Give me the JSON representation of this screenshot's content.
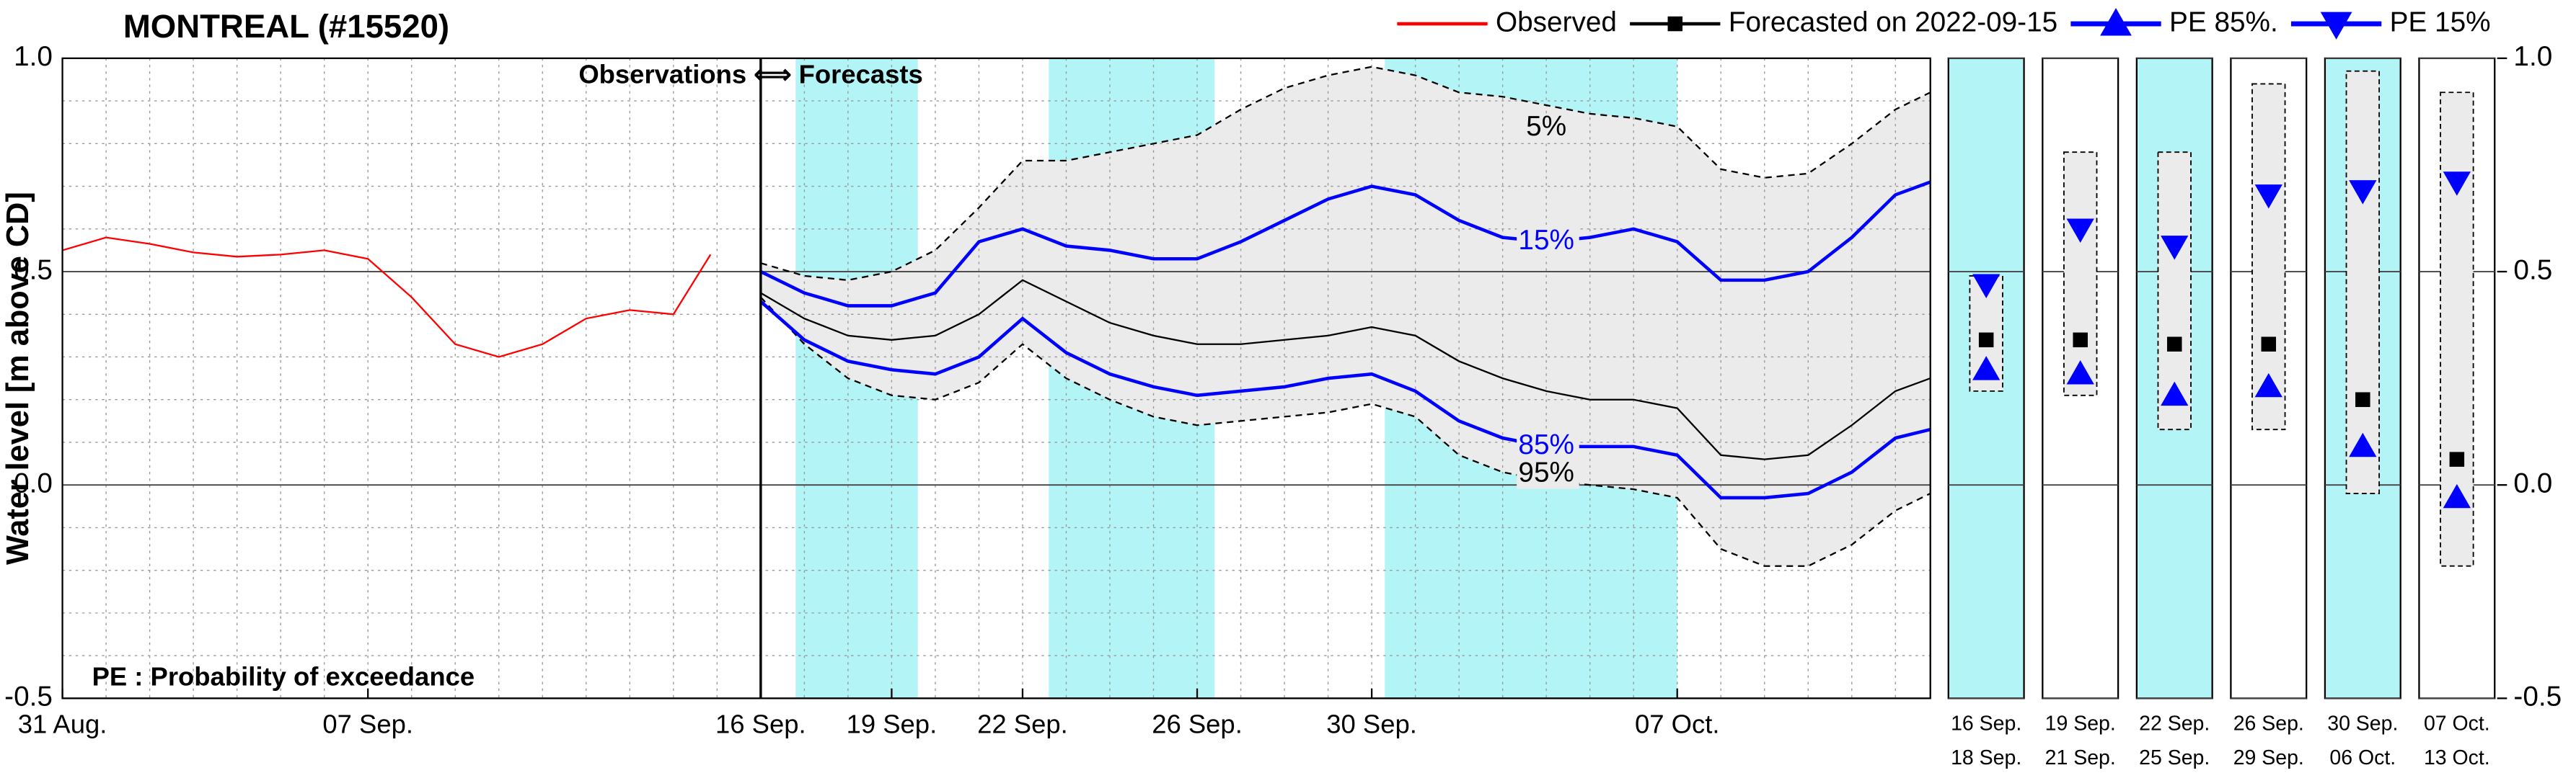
{
  "chart_data": {
    "type": "line",
    "title": "MONTREAL (#15520)",
    "ylabel": "Water level [m above CD]",
    "annotations": [
      "Observations ⟺ Forecasts",
      "PE : Probability of exceedance"
    ],
    "legend": "top-right",
    "xlim": [
      0,
      42.8
    ],
    "xticks": [
      {
        "value": 0,
        "label": "31 Aug."
      },
      {
        "value": 7,
        "label": "07 Sep."
      },
      {
        "value": 16,
        "label": "16 Sep."
      },
      {
        "value": 19,
        "label": "19 Sep."
      },
      {
        "value": 22,
        "label": "22 Sep."
      },
      {
        "value": 26,
        "label": "26 Sep."
      },
      {
        "value": 30,
        "label": "30 Sep."
      },
      {
        "value": 37,
        "label": "07 Oct."
      }
    ],
    "ylim": [
      -0.5,
      1.0
    ],
    "yticks": [
      {
        "value": -0.5,
        "label": "-0.5"
      },
      {
        "value": 0,
        "label": "0.0"
      },
      {
        "value": 0.5,
        "label": "0.5"
      },
      {
        "value": 1,
        "label": "1.0"
      }
    ],
    "minor_grid": {
      "x_step": 1,
      "y_step": 0.1
    },
    "forecast_start": 16,
    "shaded_ranges": [
      [
        16.8,
        19.6
      ],
      [
        22.6,
        26.4
      ],
      [
        30.3,
        37
      ]
    ],
    "shade_color": "#b3f5f7",
    "forecast_x": [
      16,
      17,
      18,
      19,
      20,
      21,
      22,
      23,
      24,
      25,
      26,
      27,
      28,
      29,
      30,
      31,
      32,
      33,
      34,
      35,
      36,
      37,
      38,
      39,
      40,
      41,
      42,
      42.8
    ],
    "series": [
      {
        "name": "Observed",
        "color": "#ff0000",
        "width": 1,
        "marker": "none",
        "x": [
          0,
          1,
          2,
          3,
          4,
          5,
          6,
          7,
          8,
          9,
          10,
          11,
          12,
          13,
          14,
          14.85
        ],
        "values": [
          0.55,
          0.58,
          0.565,
          0.545,
          0.535,
          0.54,
          0.55,
          0.53,
          0.44,
          0.33,
          0.3,
          0.33,
          0.39,
          0.41,
          0.4,
          0.54
        ]
      },
      {
        "name": "Forecasted on 2022-09-15",
        "color": "#000000",
        "width": 1,
        "marker": "square",
        "values": [
          0.45,
          0.39,
          0.35,
          0.34,
          0.35,
          0.4,
          0.48,
          0.43,
          0.38,
          0.35,
          0.33,
          0.33,
          0.34,
          0.35,
          0.37,
          0.35,
          0.29,
          0.25,
          0.22,
          0.2,
          0.2,
          0.18,
          0.07,
          0.06,
          0.07,
          0.14,
          0.22,
          0.25
        ]
      },
      {
        "name": "PE 85%.",
        "color": "#0000ff",
        "width": 2,
        "marker": "triangle-up",
        "curve_label": "85%",
        "values": [
          0.43,
          0.34,
          0.29,
          0.27,
          0.26,
          0.3,
          0.39,
          0.31,
          0.26,
          0.23,
          0.21,
          0.22,
          0.23,
          0.25,
          0.26,
          0.22,
          0.15,
          0.11,
          0.09,
          0.09,
          0.09,
          0.07,
          -0.03,
          -0.03,
          -0.02,
          0.03,
          0.11,
          0.13
        ]
      },
      {
        "name": "PE 15%",
        "color": "#0000ff",
        "width": 2,
        "marker": "triangle-down",
        "curve_label": "15%",
        "values": [
          0.5,
          0.45,
          0.42,
          0.42,
          0.45,
          0.57,
          0.6,
          0.56,
          0.55,
          0.53,
          0.53,
          0.57,
          0.62,
          0.67,
          0.7,
          0.68,
          0.62,
          0.58,
          0.57,
          0.58,
          0.6,
          0.57,
          0.48,
          0.48,
          0.5,
          0.58,
          0.68,
          0.71
        ]
      }
    ],
    "envelope": {
      "color": "#000000",
      "fill": "#ebebeb",
      "upper": {
        "label": "5%",
        "values": [
          0.52,
          0.49,
          0.48,
          0.5,
          0.55,
          0.65,
          0.76,
          0.76,
          0.78,
          0.8,
          0.82,
          0.88,
          0.93,
          0.96,
          0.98,
          0.96,
          0.92,
          0.91,
          0.89,
          0.87,
          0.86,
          0.84,
          0.74,
          0.72,
          0.73,
          0.8,
          0.88,
          0.92
        ]
      },
      "lower": {
        "label": "95%",
        "values": [
          0.44,
          0.33,
          0.25,
          0.21,
          0.2,
          0.24,
          0.33,
          0.25,
          0.2,
          0.16,
          0.14,
          0.15,
          0.16,
          0.17,
          0.19,
          0.16,
          0.07,
          0.03,
          0.01,
          0.0,
          -0.01,
          -0.03,
          -0.15,
          -0.19,
          -0.19,
          -0.14,
          -0.06,
          -0.02
        ]
      }
    },
    "panels": [
      {
        "label": [
          "16 Sep.",
          "18 Sep."
        ],
        "shaded": true,
        "low": 0.22,
        "high": 0.49,
        "median": 0.34,
        "pe85": 0.27,
        "pe15": 0.47
      },
      {
        "label": [
          "19 Sep.",
          "21 Sep."
        ],
        "shaded": false,
        "low": 0.21,
        "high": 0.78,
        "median": 0.34,
        "pe85": 0.26,
        "pe15": 0.6
      },
      {
        "label": [
          "22 Sep.",
          "25 Sep."
        ],
        "shaded": true,
        "low": 0.13,
        "high": 0.78,
        "median": 0.33,
        "pe85": 0.21,
        "pe15": 0.56
      },
      {
        "label": [
          "26 Sep.",
          "29 Sep."
        ],
        "shaded": false,
        "low": 0.13,
        "high": 0.94,
        "median": 0.33,
        "pe85": 0.23,
        "pe15": 0.68
      },
      {
        "label": [
          "30 Sep.",
          "06 Oct."
        ],
        "shaded": true,
        "low": -0.02,
        "high": 0.97,
        "median": 0.2,
        "pe85": 0.09,
        "pe15": 0.69
      },
      {
        "label": [
          "07 Oct.",
          "13 Oct."
        ],
        "shaded": false,
        "low": -0.19,
        "high": 0.92,
        "median": 0.06,
        "pe85": -0.03,
        "pe15": 0.71
      }
    ]
  }
}
